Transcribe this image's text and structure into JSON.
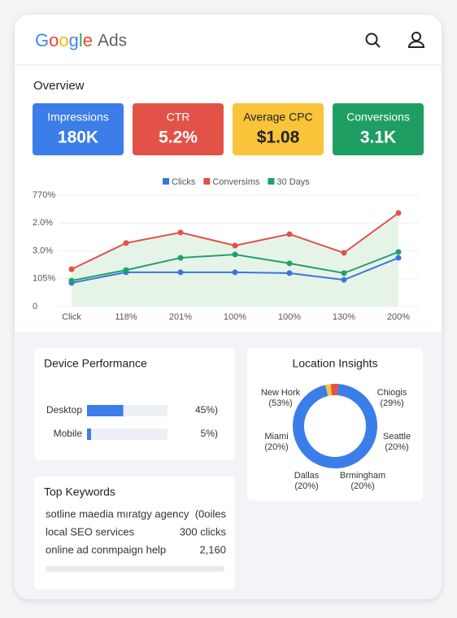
{
  "header": {
    "logo": "Google",
    "product": "Ads"
  },
  "overview": {
    "title": "Overview",
    "cards": [
      {
        "label": "Impressions",
        "value": "180K",
        "color": "#3b7de9"
      },
      {
        "label": "CTR",
        "value": "5.2%",
        "color": "#e35247"
      },
      {
        "label": "Average CPC",
        "value": "$1.08",
        "color": "#f9c33a"
      },
      {
        "label": "Conversions",
        "value": "3.1K",
        "color": "#1f9e63"
      }
    ]
  },
  "chart_data": [
    {
      "type": "line",
      "categories": [
        "Click",
        "118%",
        "201%",
        "100%",
        "100%",
        "130%",
        "200%"
      ],
      "series": [
        {
          "name": "Clicks",
          "color": "#3b73e0",
          "values": [
            0.85,
            1.23,
            1.23,
            1.23,
            1.2,
            0.96,
            1.75
          ]
        },
        {
          "name": "Conversims",
          "color": "#e0524a",
          "values": [
            1.34,
            2.28,
            2.66,
            2.19,
            2.6,
            1.93,
            3.36
          ]
        },
        {
          "name": "30 Days",
          "color": "#22a06b",
          "values": [
            0.93,
            1.31,
            1.75,
            1.87,
            1.55,
            1.2,
            1.96
          ]
        }
      ],
      "ylim": [
        0,
        4
      ],
      "yticks": [
        0,
        {
          "value": 1,
          "label": "105%"
        },
        {
          "value": 2,
          "label": "3.0%"
        },
        {
          "value": 3,
          "label": "2.0%"
        },
        {
          "value": 4,
          "label": "770%"
        }
      ],
      "area_color": "#e6f4e8"
    },
    {
      "type": "hbar",
      "title": "Device Performance",
      "categories": [
        "Desktop",
        "Mobile"
      ],
      "values": [
        45,
        5
      ],
      "value_labels": [
        "45%)",
        "5%)"
      ],
      "xlim": [
        0,
        100
      ],
      "color": "#3b7de9"
    },
    {
      "type": "donut",
      "title": "Location Insights",
      "categories": [
        null,
        null,
        null
      ],
      "values": [
        3,
        95,
        2
      ],
      "colors": [
        "#e0524a",
        "#3b7de9",
        "#f9c33a"
      ],
      "annotations": [
        {
          "name": "New Hork",
          "share": "(53%)"
        },
        {
          "name": "Chiogis",
          "share": "(29%)"
        },
        {
          "name": "Miami",
          "share": "(20%)"
        },
        {
          "name": "Seattle",
          "share": "(20%)"
        },
        {
          "name": "Dallas",
          "share": "(20%)"
        },
        {
          "name": "Brmingham",
          "share": "(20%)"
        }
      ]
    }
  ],
  "keywords": {
    "title": "Top Keywords",
    "rows": [
      [
        "sotline maedia mıratgy agency",
        "(0oiles"
      ],
      [
        "local SEO services",
        "300 clicks"
      ],
      [
        "online ad conmpaign help",
        "2,160"
      ]
    ]
  }
}
